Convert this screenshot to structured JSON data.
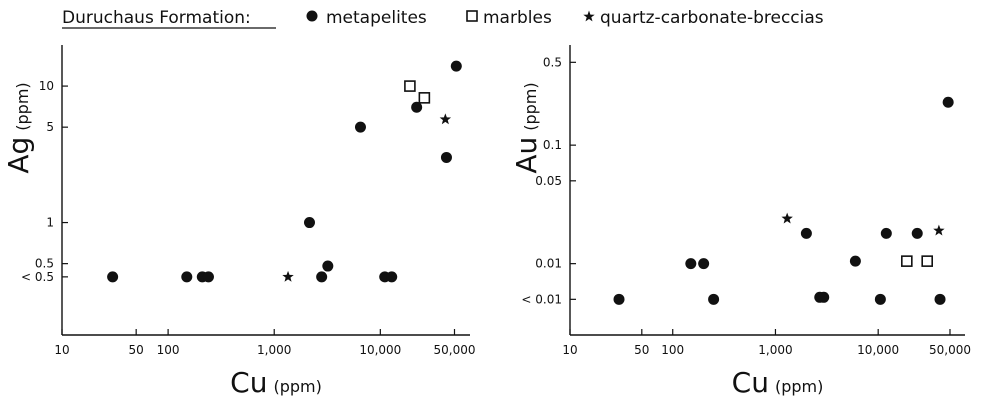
{
  "legend": {
    "title": "Duruchaus Formation:",
    "metapelites": "metapelites",
    "marbles": "marbles",
    "breccias": "quartz-carbonate-breccias"
  },
  "colors": {
    "ink": "#111111",
    "background": "#ffffff"
  },
  "chart_data": [
    {
      "type": "scatter",
      "xscale": "log",
      "yscale": "log",
      "xlim": [
        10,
        70000
      ],
      "ylim": [
        0.15,
        20
      ],
      "xlabel": {
        "main": "Cu",
        "unit": "(ppm)"
      },
      "ylabel": {
        "main": "Ag",
        "unit": "(ppm)"
      },
      "xticks": [
        {
          "value": 10,
          "label": "10"
        },
        {
          "value": 50,
          "label": "50"
        },
        {
          "value": 100,
          "label": "100"
        },
        {
          "value": 1000,
          "label": "1,000"
        },
        {
          "value": 10000,
          "label": "10,000"
        },
        {
          "value": 50000,
          "label": "50,000"
        }
      ],
      "yticks": [
        {
          "value": 0.4,
          "label": "< 0.5"
        },
        {
          "value": 0.5,
          "label": "0.5"
        },
        {
          "value": 1,
          "label": "1"
        },
        {
          "value": 5,
          "label": "5"
        },
        {
          "value": 10,
          "label": "10"
        }
      ],
      "series": [
        {
          "name": "metapelites",
          "marker": "filled-circle",
          "x": [
            30,
            150,
            210,
            240,
            2150,
            2800,
            3200,
            6500,
            11000,
            12800,
            22000,
            42000,
            52000
          ],
          "y": [
            0.4,
            0.4,
            0.4,
            0.4,
            1,
            0.4,
            0.48,
            5,
            0.4,
            0.4,
            7,
            3,
            14
          ]
        },
        {
          "name": "marbles",
          "marker": "open-square",
          "x": [
            19000,
            26000
          ],
          "y": [
            10,
            8.2
          ]
        },
        {
          "name": "quartz-carbonate-breccias",
          "marker": "star",
          "x": [
            1350,
            41000
          ],
          "y": [
            0.4,
            5.7
          ]
        }
      ]
    },
    {
      "type": "scatter",
      "xscale": "log",
      "yscale": "log",
      "xlim": [
        10,
        70000
      ],
      "ylim": [
        0.0025,
        0.7
      ],
      "xlabel": {
        "main": "Cu",
        "unit": "(ppm)"
      },
      "ylabel": {
        "main": "Au",
        "unit": "(ppm)"
      },
      "xticks": [
        {
          "value": 10,
          "label": "10"
        },
        {
          "value": 50,
          "label": "50"
        },
        {
          "value": 100,
          "label": "100"
        },
        {
          "value": 1000,
          "label": "1,000"
        },
        {
          "value": 10000,
          "label": "10,000"
        },
        {
          "value": 50000,
          "label": "50,000"
        }
      ],
      "yticks": [
        {
          "value": 0.005,
          "label": "< 0.01"
        },
        {
          "value": 0.01,
          "label": "0.01"
        },
        {
          "value": 0.05,
          "label": 0.05
        },
        {
          "value": 0.1,
          "label": "0.1"
        },
        {
          "value": 0.5,
          "label": "0.5"
        }
      ],
      "series": [
        {
          "name": "metapelites",
          "marker": "filled-circle",
          "x": [
            30,
            150,
            200,
            250,
            2000,
            2700,
            2950,
            6000,
            10500,
            12000,
            24000,
            40000,
            48000
          ],
          "y": [
            0.005,
            0.01,
            0.01,
            0.005,
            0.018,
            0.0052,
            0.0052,
            0.0105,
            0.005,
            0.018,
            0.018,
            0.005,
            0.23
          ]
        },
        {
          "name": "marbles",
          "marker": "open-square",
          "x": [
            19000,
            30000
          ],
          "y": [
            0.0105,
            0.0105
          ]
        },
        {
          "name": "quartz-carbonate-breccias",
          "marker": "star",
          "x": [
            1300,
            39000
          ],
          "y": [
            0.024,
            0.019
          ]
        }
      ]
    }
  ]
}
